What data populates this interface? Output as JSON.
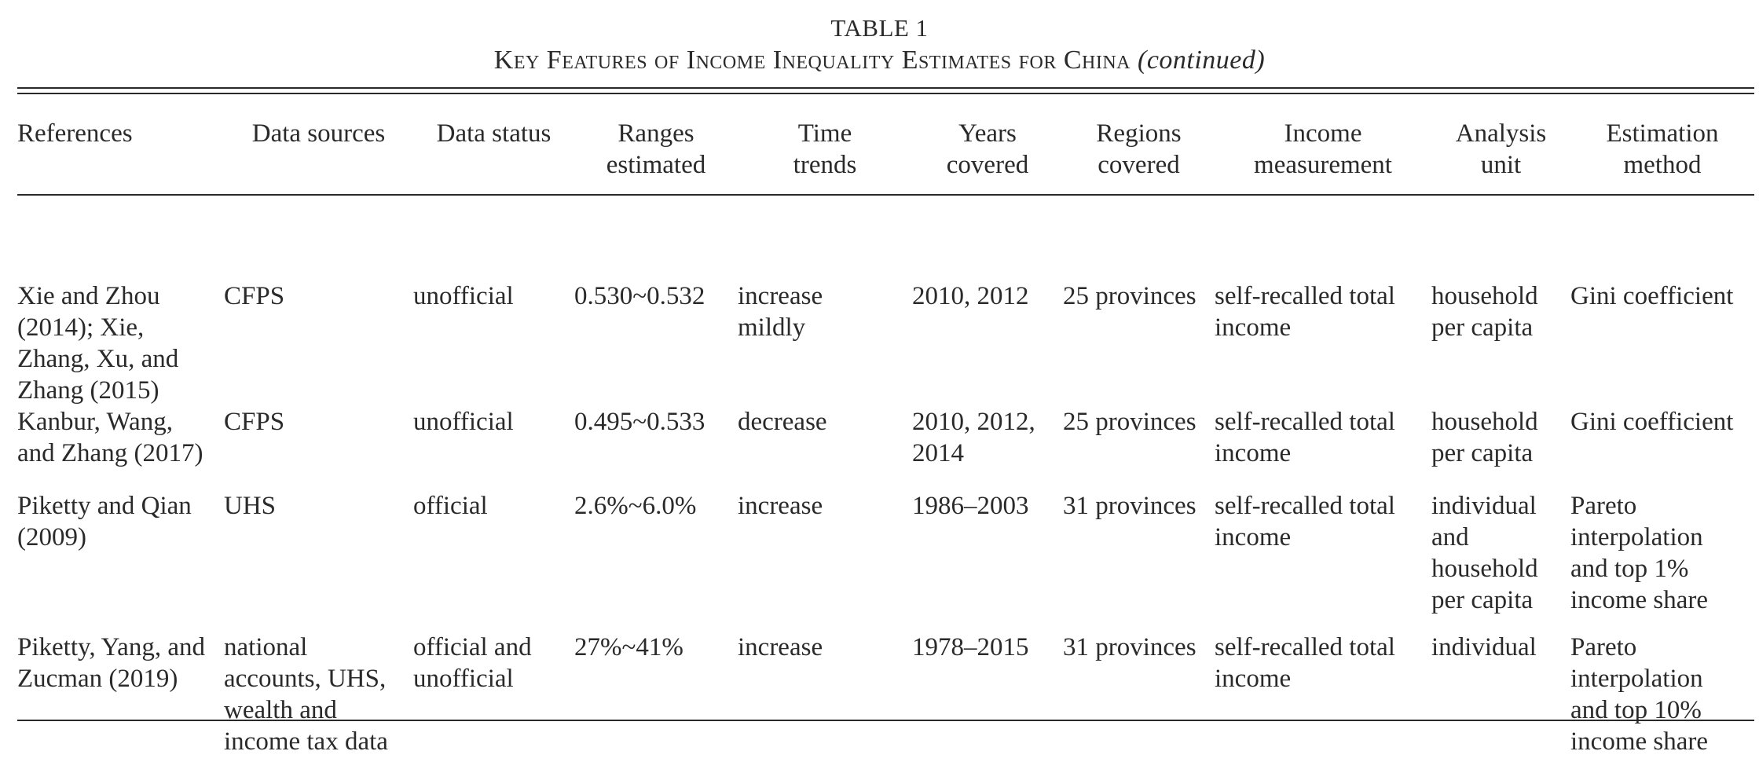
{
  "caption": {
    "label": "TABLE 1",
    "title": "Key Features of Income Inequality Estimates for China",
    "continued": "(continued)"
  },
  "table": {
    "headers": [
      [
        "References"
      ],
      [
        "Data sources"
      ],
      [
        "Data status"
      ],
      [
        "Ranges",
        "estimated"
      ],
      [
        "Time",
        "trends"
      ],
      [
        "Years",
        "covered"
      ],
      [
        "Regions",
        "covered"
      ],
      [
        "Income",
        "measurement"
      ],
      [
        "Analysis",
        "unit"
      ],
      [
        "Estimation",
        "method"
      ]
    ],
    "rows": [
      [
        [
          "Xie and Zhou",
          "(2014); Xie,",
          "Zhang, Xu, and",
          "Zhang (2015)"
        ],
        [
          "CFPS"
        ],
        [
          "unofficial"
        ],
        [
          "0.530~0.532"
        ],
        [
          "increase",
          "mildly"
        ],
        [
          "2010, 2012"
        ],
        [
          "25 provinces"
        ],
        [
          "self-recalled total",
          "income"
        ],
        [
          "household",
          "per capita"
        ],
        [
          "Gini coefficient"
        ]
      ],
      [
        [
          "Kanbur, Wang,",
          "and Zhang (2017)"
        ],
        [
          "CFPS"
        ],
        [
          "unofficial"
        ],
        [
          "0.495~0.533"
        ],
        [
          "decrease"
        ],
        [
          "2010, 2012,",
          "2014"
        ],
        [
          "25 provinces"
        ],
        [
          "self-recalled total",
          "income"
        ],
        [
          "household",
          "per capita"
        ],
        [
          "Gini coefficient"
        ]
      ],
      [
        [
          "Piketty and Qian",
          "(2009)"
        ],
        [
          "UHS"
        ],
        [
          "official"
        ],
        [
          "2.6%~6.0%"
        ],
        [
          "increase"
        ],
        [
          "1986–2003"
        ],
        [
          "31 provinces"
        ],
        [
          "self-recalled total",
          "income"
        ],
        [
          "individual",
          "and",
          "household",
          "per capita"
        ],
        [
          "Pareto",
          "interpolation",
          "and top 1%",
          "income share"
        ]
      ],
      [
        [
          "Piketty, Yang, and",
          "Zucman (2019)"
        ],
        [
          "national",
          "accounts, UHS,",
          "wealth and",
          "income tax data"
        ],
        [
          "official and",
          "unofficial"
        ],
        [
          "27%~41%"
        ],
        [
          "increase"
        ],
        [
          "1978–2015"
        ],
        [
          "31 provinces"
        ],
        [
          "self-recalled total",
          "income"
        ],
        [
          "individual"
        ],
        [
          "Pareto",
          "interpolation",
          "and top 10%",
          "income share"
        ]
      ]
    ]
  }
}
